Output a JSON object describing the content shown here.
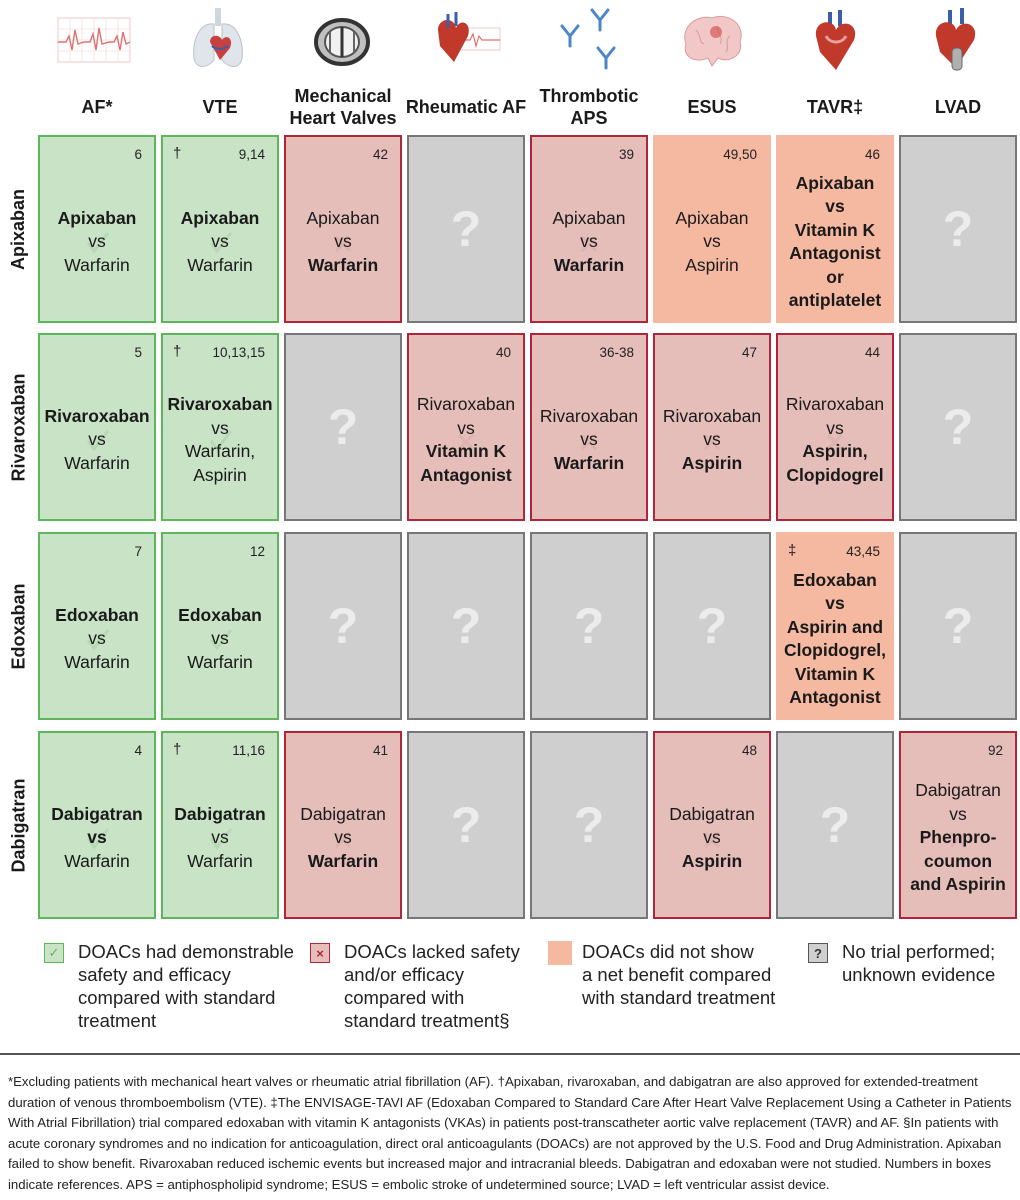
{
  "columns": [
    {
      "label": "AF*",
      "icon": "ecg-waveform-icon"
    },
    {
      "label": "VTE",
      "icon": "lungs-heart-icon"
    },
    {
      "label": "Mechanical Heart Valves",
      "icon": "mechanical-valve-icon"
    },
    {
      "label": "Rheumatic AF",
      "icon": "heart-ecg-icon"
    },
    {
      "label": "Thrombotic APS",
      "icon": "antibody-icon"
    },
    {
      "label": "ESUS",
      "icon": "brain-icon"
    },
    {
      "label": "TAVR‡",
      "icon": "heart-tavr-icon"
    },
    {
      "label": "LVAD",
      "icon": "heart-lvad-icon"
    }
  ],
  "rows": [
    {
      "label": "Apixaban"
    },
    {
      "label": "Rivaroxaban"
    },
    {
      "label": "Edoxaban"
    },
    {
      "label": "Dabigatran"
    }
  ],
  "cells": {
    "r0c0": {
      "status": "green",
      "ref": "6",
      "mark": "",
      "l1": "Apixaban",
      "l2": "vs",
      "l3": "Warfarin"
    },
    "r0c1": {
      "status": "green",
      "ref": "9,14",
      "mark": "†",
      "l1": "Apixaban",
      "l2": "vs",
      "l3": "Warfarin"
    },
    "r0c2": {
      "status": "red",
      "ref": "42",
      "mark": "",
      "l1": "Apixaban",
      "l2": "vs",
      "l3": "Warfarin"
    },
    "r0c4": {
      "status": "red",
      "ref": "39",
      "mark": "",
      "l1": "Apixaban",
      "l2": "vs",
      "l3": "Warfarin"
    },
    "r0c5": {
      "status": "orange",
      "ref": "49,50",
      "mark": "",
      "l1": "Apixaban",
      "l2": "vs",
      "l3": "Aspirin"
    },
    "r0c6": {
      "status": "orange",
      "ref": "46",
      "mark": "",
      "l1": "Apixaban",
      "l2": "vs",
      "l3": "Vitamin K",
      "l4": "Antagonist",
      "l5": "or",
      "l6": "antiplatelet"
    },
    "r1c0": {
      "status": "green",
      "ref": "5",
      "mark": "",
      "l1": "Rivaroxaban",
      "l2": "vs",
      "l3": "Warfarin"
    },
    "r1c1": {
      "status": "green",
      "ref": "10,13,15",
      "mark": "†",
      "l1": "Rivaroxaban",
      "l2": "vs",
      "l3": "Warfarin,",
      "l4": "Aspirin"
    },
    "r1c3": {
      "status": "red",
      "ref": "40",
      "mark": "",
      "l1": "Rivaroxaban",
      "l2": "vs",
      "l3": "Vitamin K",
      "l4": "Antagonist"
    },
    "r1c4": {
      "status": "red",
      "ref": "36-38",
      "mark": "",
      "l1": "Rivaroxaban",
      "l2": "vs",
      "l3": "Warfarin"
    },
    "r1c5": {
      "status": "red",
      "ref": "47",
      "mark": "",
      "l1": "Rivaroxaban",
      "l2": "vs",
      "l3": "Aspirin"
    },
    "r1c6": {
      "status": "red",
      "ref": "44",
      "mark": "",
      "l1": "Rivaroxaban",
      "l2": "vs",
      "l3": "Aspirin,",
      "l4": "Clopidogrel"
    },
    "r2c0": {
      "status": "green",
      "ref": "7",
      "mark": "",
      "l1": "Edoxaban",
      "l2": "vs",
      "l3": "Warfarin"
    },
    "r2c1": {
      "status": "green",
      "ref": "12",
      "mark": "",
      "l1": "Edoxaban",
      "l2": "vs",
      "l3": "Warfarin"
    },
    "r2c6": {
      "status": "orange",
      "ref": "43,45",
      "mark": "‡",
      "l1": "Edoxaban",
      "l2": "vs",
      "l3": "Aspirin and",
      "l4": "Clopidogrel,",
      "l5": "Vitamin K",
      "l6": "Antagonist"
    },
    "r3c0": {
      "status": "green",
      "ref": "4",
      "mark": "",
      "l1": "Dabigatran",
      "l2": "vs",
      "l3": "Warfarin"
    },
    "r3c1": {
      "status": "green",
      "ref": "11,16",
      "mark": "†",
      "l1": "Dabigatran",
      "l2": "vs",
      "l3": "Warfarin"
    },
    "r3c2": {
      "status": "red",
      "ref": "41",
      "mark": "",
      "l1": "Dabigatran",
      "l2": "vs",
      "l3": "Warfarin"
    },
    "r3c5": {
      "status": "red",
      "ref": "48",
      "mark": "",
      "l1": "Dabigatran",
      "l2": "vs",
      "l3": "Aspirin"
    },
    "r3c7": {
      "status": "red",
      "ref": "92",
      "mark": "",
      "l1": "Dabigatran",
      "l2": "vs",
      "l3": "Phenpro-",
      "l4": "coumon",
      "l5": "and Aspirin"
    }
  },
  "unknown_symbol": "?",
  "legend": {
    "green": {
      "l1": "DOACs had demonstrable",
      "l2": "safety and efficacy",
      "l3": "compared with standard",
      "l4": "treatment",
      "symbol": "✓"
    },
    "red": {
      "l1": "DOACs lacked safety",
      "l2": "and/or efficacy",
      "l3": "compared with",
      "l4": "standard treatment§",
      "symbol": "×"
    },
    "orange": {
      "l1": "DOACs did not show",
      "l2": "a net benefit compared",
      "l3": "with standard treatment"
    },
    "gray": {
      "l1": "No trial performed;",
      "l2": "unknown evidence",
      "symbol": "?"
    }
  },
  "footnote": "*Excluding patients with mechanical heart valves or rheumatic atrial fibrillation (AF). †Apixaban, rivaroxaban, and dabigatran are also approved for extended-treatment duration of venous thromboembolism (VTE). ‡The ENVISAGE-TAVI AF (Edoxaban Compared to Standard Care After Heart Valve Replacement Using a Catheter in Patients With Atrial Fibrillation) trial compared edoxaban with vitamin K antagonists (VKAs) in patients post-transcatheter aortic valve replacement (TAVR) and AF. §In patients with acute coronary syndromes and no indication for anticoagulation, direct oral anticoagulants (DOACs) are not approved by the U.S. Food and Drug Administration. Apixaban failed to show benefit. Rivaroxaban reduced ischemic events but increased major and intracranial bleeds. Dabigatran and edoxaban were not studied. Numbers in boxes indicate references. APS = antiphospholipid syndrome; ESUS = embolic stroke of undetermined source; LVAD = left ventricular assist device.",
  "colors": {
    "green_fill": "#c8e3c6",
    "green_border": "#5eb65a",
    "red_fill": "#e5bdb9",
    "red_border": "#b1253a",
    "orange_fill": "#f5b8a0",
    "gray_fill": "#cfcfcf"
  }
}
